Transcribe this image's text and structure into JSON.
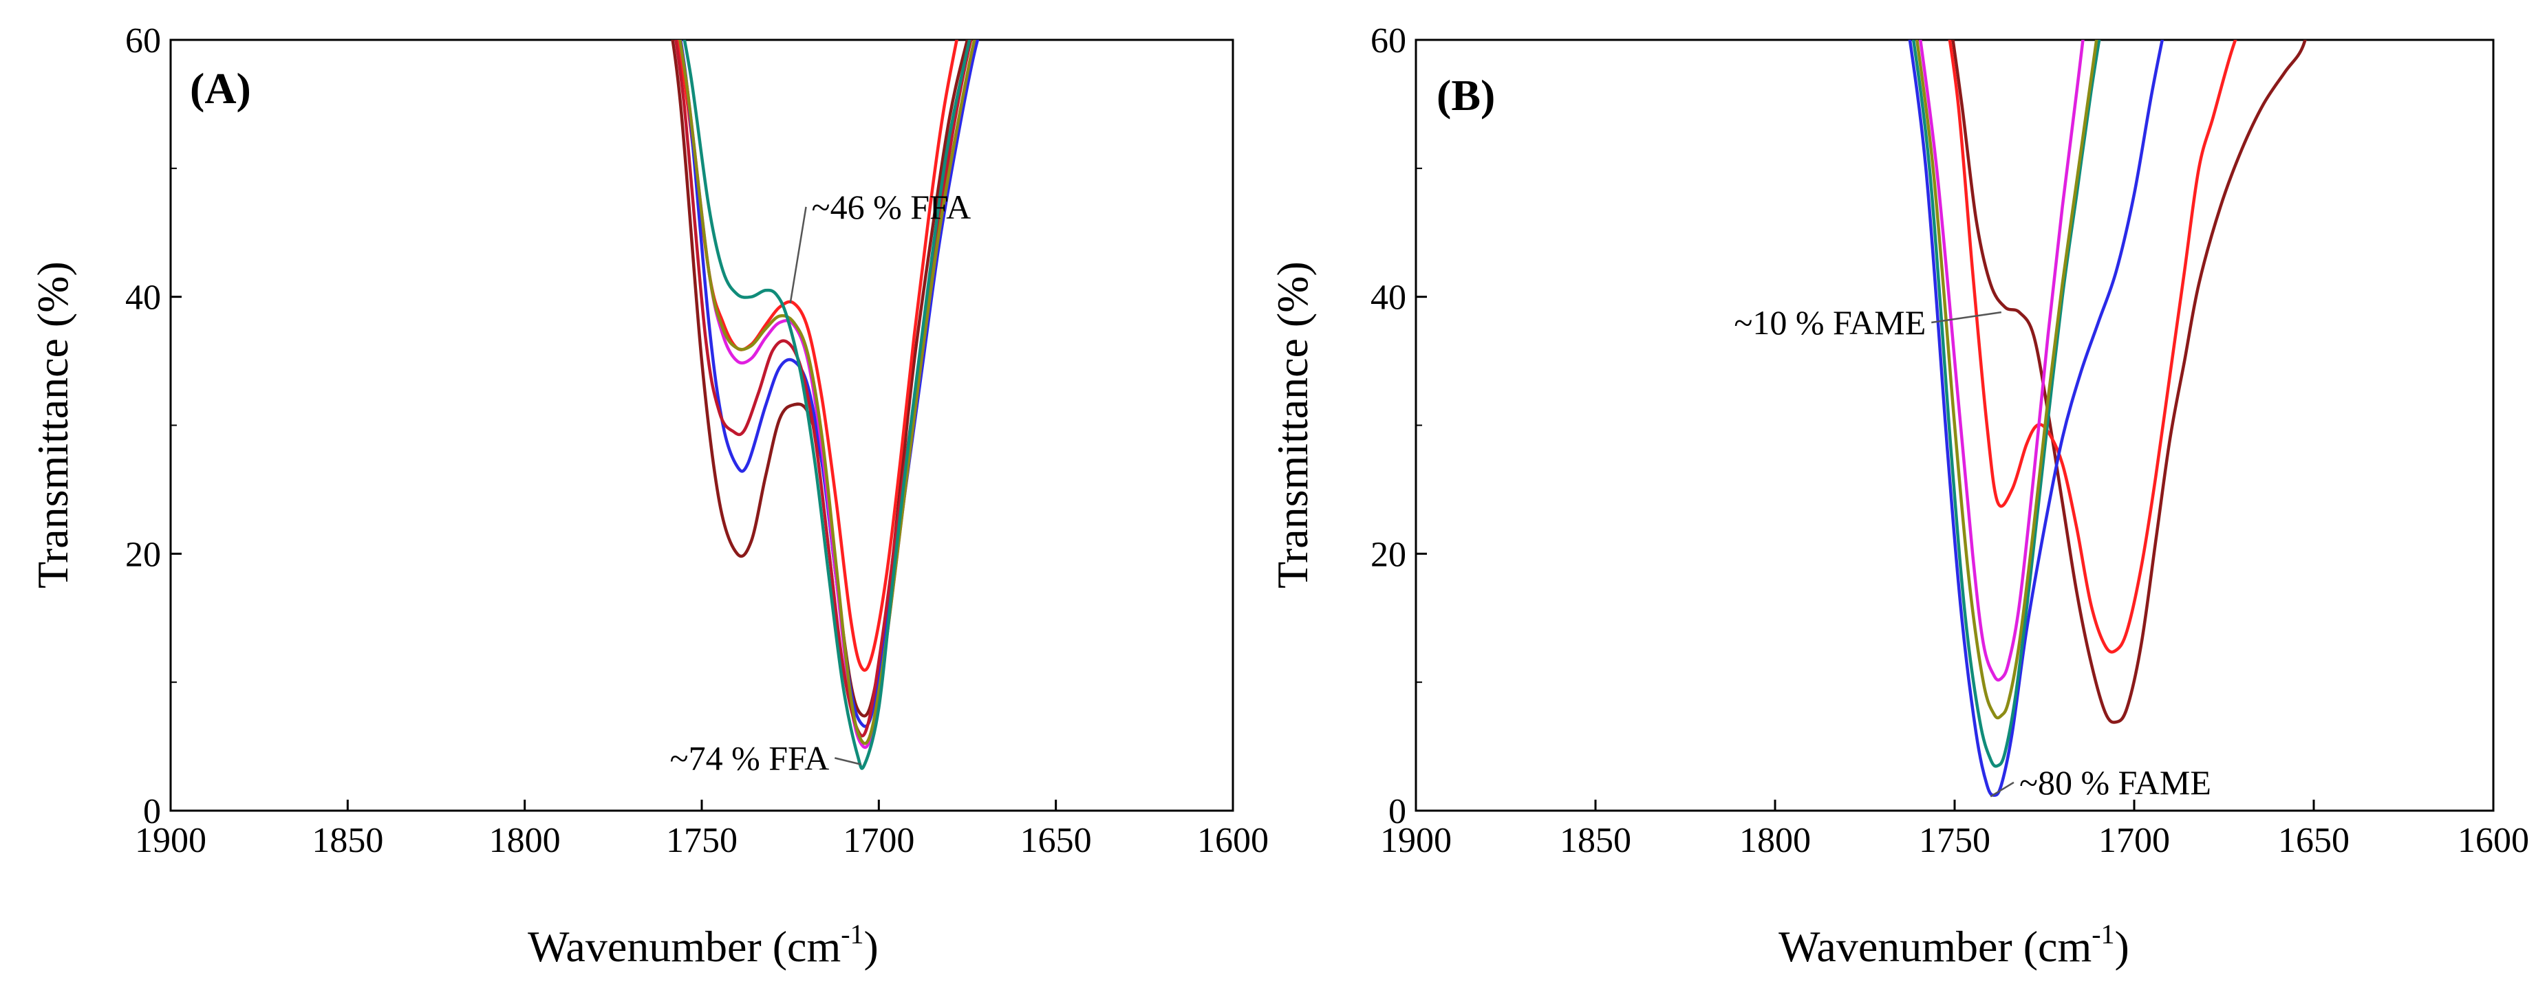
{
  "chart_data": [
    {
      "type": "line",
      "panel_label": "(A)",
      "xlabel": "Wavenumber (cm",
      "xlabel_sup": "-1",
      "xlabel_close": ")",
      "ylabel": "Transmittance (%)",
      "xlim": [
        1900,
        1600
      ],
      "ylim": [
        0,
        60
      ],
      "x_ticks": [
        1900,
        1850,
        1800,
        1750,
        1700,
        1650,
        1600
      ],
      "y_ticks": [
        0,
        20,
        40,
        60
      ],
      "grid": false,
      "annotations": [
        {
          "text": "~46 % FFA",
          "x": 1719,
          "y": 47,
          "target_x": 1725,
          "target_y": 39.5
        },
        {
          "text": "~74 % FFA",
          "x": 1714,
          "y": 4.1,
          "target_x": 1705,
          "target_y": 3.6
        }
      ],
      "series": [
        {
          "name": "dark red",
          "color": "#8b1a1a",
          "x": [
            1760,
            1756,
            1750,
            1745,
            1740,
            1736,
            1732,
            1728,
            1724,
            1720,
            1716,
            1712,
            1708,
            1705,
            1702,
            1698,
            1694,
            1690,
            1685,
            1680,
            1675,
            1670
          ],
          "y": [
            63,
            55,
            35,
            24,
            20,
            21,
            26,
            30.5,
            31.6,
            31,
            27,
            18,
            10,
            7.5,
            8.5,
            15,
            25,
            35,
            45,
            54,
            60,
            65
          ]
        },
        {
          "name": "red",
          "color": "#ff2020",
          "x": [
            1758,
            1754,
            1748,
            1744,
            1740,
            1736,
            1732,
            1728,
            1724,
            1720,
            1716,
            1712,
            1708,
            1705,
            1702,
            1698,
            1694,
            1690,
            1686,
            1682,
            1678,
            1674
          ],
          "y": [
            63,
            55,
            42,
            38,
            36,
            36.3,
            37.8,
            39.2,
            39.5,
            37.5,
            32,
            24,
            15,
            11.2,
            12,
            18,
            27,
            37,
            46,
            54,
            60,
            65
          ]
        },
        {
          "name": "blue",
          "color": "#2a2ae8",
          "x": [
            1758,
            1754,
            1748,
            1744,
            1740,
            1737,
            1732,
            1728,
            1724,
            1720,
            1716,
            1712,
            1708,
            1705,
            1702,
            1698,
            1693,
            1688,
            1683,
            1678,
            1673,
            1668
          ],
          "y": [
            63,
            56,
            38,
            30,
            26.8,
            27,
            31.5,
            34.5,
            35,
            33,
            27,
            18,
            9.5,
            6.8,
            7.5,
            14,
            24,
            34,
            44,
            52,
            59,
            64
          ]
        },
        {
          "name": "magenta",
          "color": "#e020e0",
          "x": [
            1758,
            1754,
            1748,
            1744,
            1740,
            1736,
            1732,
            1728,
            1724,
            1720,
            1716,
            1712,
            1708,
            1705,
            1702,
            1698,
            1693,
            1688,
            1683,
            1678,
            1673,
            1668
          ],
          "y": [
            63,
            56,
            42,
            37,
            35,
            35.2,
            36.8,
            38,
            37.8,
            35,
            28,
            18,
            8.5,
            5.2,
            6,
            13,
            24,
            35,
            45,
            53,
            60,
            65
          ]
        },
        {
          "name": "crimson",
          "color": "#c0182e",
          "x": [
            1759,
            1755,
            1749,
            1745,
            1741,
            1738,
            1734,
            1730,
            1726,
            1722,
            1718,
            1714,
            1710,
            1706,
            1703,
            1699,
            1694,
            1689,
            1684,
            1679,
            1674,
            1669
          ],
          "y": [
            63,
            55,
            37,
            31,
            29.5,
            29.6,
            32.5,
            35.8,
            36.5,
            34.5,
            29,
            20,
            11,
            6.3,
            6.8,
            13.5,
            24,
            34,
            44,
            53,
            60,
            65
          ]
        },
        {
          "name": "olive",
          "color": "#8c8c14",
          "x": [
            1758,
            1754,
            1748,
            1744,
            1740,
            1736,
            1732,
            1728,
            1724,
            1720,
            1716,
            1712,
            1708,
            1705,
            1702,
            1698,
            1693,
            1688,
            1683,
            1678,
            1673,
            1668
          ],
          "y": [
            63,
            56,
            42,
            37.5,
            36,
            36.2,
            37.5,
            38.5,
            38,
            35.5,
            29,
            19,
            9,
            5.5,
            6.3,
            13,
            24,
            35,
            45,
            53,
            60,
            65
          ]
        },
        {
          "name": "teal",
          "color": "#108c7a",
          "x": [
            1757,
            1753,
            1748,
            1744,
            1740,
            1736,
            1732,
            1729,
            1726,
            1722,
            1718,
            1714,
            1710,
            1706,
            1704,
            1700,
            1696,
            1691,
            1686,
            1681,
            1676,
            1671
          ],
          "y": [
            63,
            57,
            47,
            42,
            40.2,
            40,
            40.5,
            40.2,
            38.5,
            34,
            27,
            18,
            9.5,
            4.3,
            3.6,
            8,
            18,
            30,
            41,
            51,
            58,
            64
          ]
        }
      ]
    },
    {
      "type": "line",
      "panel_label": "(B)",
      "xlabel": "Wavenumber (cm",
      "xlabel_sup": "-1",
      "xlabel_close": ")",
      "ylabel": "Transmittance (%)",
      "xlim": [
        1900,
        1600
      ],
      "ylim": [
        0,
        60
      ],
      "x_ticks": [
        1900,
        1850,
        1800,
        1750,
        1700,
        1650,
        1600
      ],
      "y_ticks": [
        0,
        20,
        40,
        60
      ],
      "grid": false,
      "annotations": [
        {
          "text": "~10 % FAME",
          "x": 1758,
          "y": 38,
          "target_x": 1737,
          "target_y": 38.8
        },
        {
          "text": "~80 % FAME",
          "x": 1732,
          "y": 2.2,
          "target_x": 1740,
          "target_y": 1.1
        }
      ],
      "series": [
        {
          "name": "dark red",
          "color": "#8b1a1a",
          "x": [
            1752,
            1748,
            1744,
            1740,
            1736,
            1732,
            1728,
            1724,
            1720,
            1716,
            1712,
            1708,
            1705,
            1702,
            1698,
            1694,
            1690,
            1686,
            1682,
            1676,
            1670,
            1664,
            1658,
            1653,
            1650
          ],
          "y": [
            63,
            55,
            46,
            41,
            39.2,
            38.8,
            37,
            31,
            24,
            17,
            11.5,
            7.6,
            6.9,
            8,
            13,
            21,
            29,
            35,
            41,
            47,
            51.5,
            55,
            57.5,
            59.5,
            63
          ]
        },
        {
          "name": "red",
          "color": "#ff2020",
          "x": [
            1753,
            1749,
            1745,
            1741,
            1738,
            1734,
            1730,
            1727,
            1724,
            1720,
            1716,
            1712,
            1708,
            1705,
            1702,
            1698,
            1694,
            1690,
            1686,
            1682,
            1678,
            1673,
            1668
          ],
          "y": [
            63,
            55,
            42,
            30,
            24,
            25,
            28.5,
            30,
            29.5,
            27,
            22,
            16,
            12.8,
            12.5,
            14,
            19,
            26,
            34,
            42,
            50,
            54,
            59,
            63
          ]
        },
        {
          "name": "blue",
          "color": "#2a2ae8",
          "x": [
            1764,
            1758,
            1752,
            1748,
            1744,
            1741,
            1739,
            1737,
            1734,
            1730,
            1725,
            1720,
            1715,
            1710,
            1705,
            1700,
            1695,
            1690
          ],
          "y": [
            63,
            50,
            28,
            15,
            6,
            2,
            1.2,
            2,
            6,
            14,
            22,
            29,
            34,
            38,
            42,
            48,
            56,
            63
          ]
        },
        {
          "name": "teal",
          "color": "#108c7a",
          "x": [
            1763,
            1757,
            1751,
            1747,
            1743,
            1740,
            1738,
            1736,
            1733,
            1729,
            1725,
            1720,
            1716,
            1712,
            1708
          ],
          "y": [
            63,
            50,
            28,
            15,
            7,
            4,
            3.5,
            4.5,
            9,
            18,
            28,
            40,
            48,
            56,
            63
          ]
        },
        {
          "name": "olive",
          "color": "#8c8c14",
          "x": [
            1762,
            1756,
            1750,
            1746,
            1742,
            1739,
            1737,
            1735,
            1732,
            1728,
            1724,
            1720,
            1716,
            1712,
            1709
          ],
          "y": [
            63,
            50,
            30,
            18,
            10,
            7.5,
            7.4,
            8.5,
            13,
            22,
            32,
            41,
            49,
            57,
            63
          ]
        },
        {
          "name": "magenta",
          "color": "#e020e0",
          "x": [
            1761,
            1755,
            1749,
            1745,
            1742,
            1739,
            1737,
            1735,
            1732,
            1728,
            1724,
            1720,
            1716,
            1713
          ],
          "y": [
            63,
            50,
            32,
            20,
            13,
            10.5,
            10.3,
            11.5,
            16,
            26,
            37,
            47,
            56,
            63
          ]
        }
      ]
    }
  ]
}
